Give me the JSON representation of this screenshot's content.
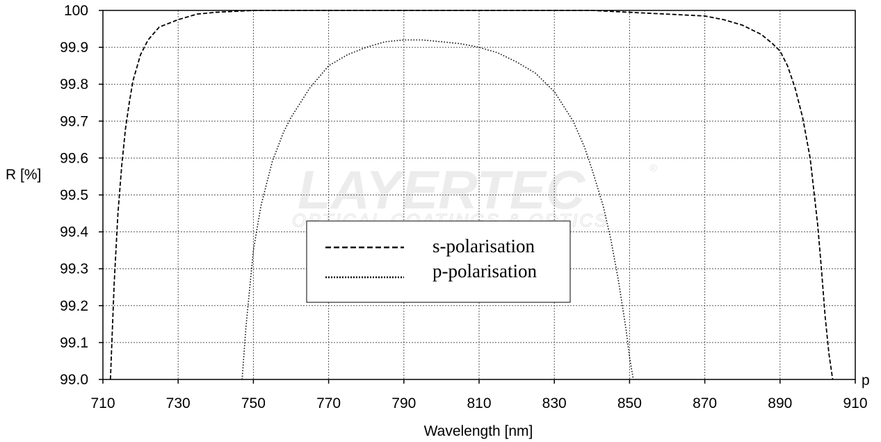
{
  "chart_data": {
    "type": "line",
    "xlabel": "Wavelength [nm]",
    "ylabel": "R [%]",
    "xlim": [
      710,
      910
    ],
    "ylim": [
      99.0,
      100.0
    ],
    "x_ticks": [
      "710",
      "730",
      "750",
      "770",
      "790",
      "810",
      "830",
      "850",
      "870",
      "890",
      "910"
    ],
    "y_ticks": [
      "99.0",
      "99.1",
      "99.2",
      "99.3",
      "99.4",
      "99.5",
      "99.6",
      "99.7",
      "99.8",
      "99.9",
      "100"
    ],
    "axis_end_marker": "p",
    "grid": true,
    "grid_style": "dotted",
    "legend_position": "center",
    "watermark": {
      "brand": "LAYERTEC",
      "registered": "®",
      "tagline": "OPTICAL COATINGS & OPTICS"
    },
    "series": [
      {
        "name": "s-polarisation",
        "line_style": "dashed",
        "color": "#000000",
        "x": [
          712,
          713,
          714,
          715,
          716,
          717,
          718,
          720,
          722,
          725,
          730,
          735,
          740,
          750,
          760,
          780,
          800,
          820,
          840,
          850,
          860,
          870,
          875,
          880,
          885,
          888,
          890,
          892,
          894,
          896,
          898,
          900,
          901,
          902,
          903,
          904
        ],
        "y": [
          99.0,
          99.26,
          99.45,
          99.58,
          99.68,
          99.75,
          99.81,
          99.88,
          99.92,
          99.955,
          99.975,
          99.99,
          99.995,
          100.0,
          100.0,
          100.0,
          100.0,
          100.0,
          100.0,
          99.995,
          99.99,
          99.985,
          99.975,
          99.96,
          99.935,
          99.91,
          99.89,
          99.85,
          99.79,
          99.71,
          99.6,
          99.42,
          99.3,
          99.17,
          99.07,
          99.0
        ]
      },
      {
        "name": "p-polarisation",
        "line_style": "dotted",
        "color": "#000000",
        "x": [
          747,
          748,
          750,
          752,
          755,
          758,
          760,
          765,
          770,
          775,
          780,
          785,
          790,
          795,
          800,
          805,
          810,
          815,
          820,
          825,
          830,
          835,
          838,
          840,
          843,
          845,
          847,
          849,
          850,
          851
        ],
        "y": [
          99.0,
          99.14,
          99.35,
          99.47,
          99.59,
          99.67,
          99.71,
          99.79,
          99.85,
          99.88,
          99.9,
          99.915,
          99.92,
          99.92,
          99.915,
          99.91,
          99.9,
          99.885,
          99.86,
          99.83,
          99.78,
          99.7,
          99.63,
          99.57,
          99.47,
          99.38,
          99.27,
          99.14,
          99.06,
          99.0
        ]
      }
    ]
  }
}
